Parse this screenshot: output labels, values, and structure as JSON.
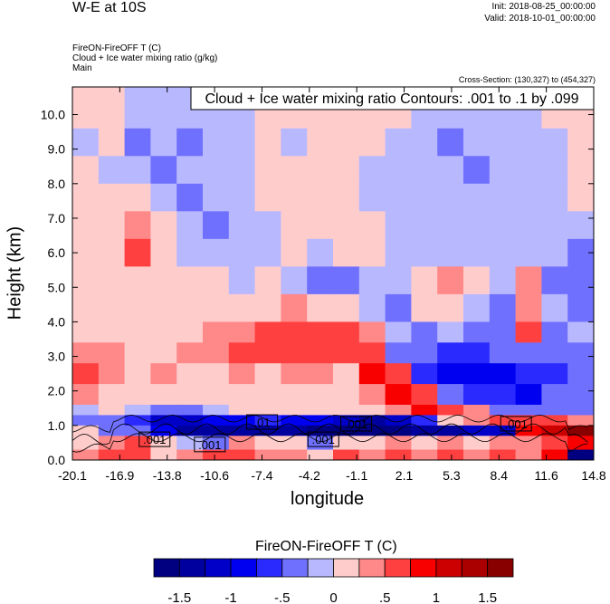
{
  "header": {
    "title": "W-E at 10S",
    "init": "Init: 2018-08-25_00:00:00",
    "valid": "Valid: 2018-10-01_00:00:00",
    "subtitles": [
      "FireON-FireOFF T   (C)",
      "Cloud + Ice water mixing ratio   (g/kg)",
      "Main"
    ],
    "cross_section": "Cross-Section: (130,327) to (454,327)"
  },
  "chart_data": {
    "type": "heatmap",
    "title": "W-E at 10S",
    "xlabel": "longitude",
    "ylabel": "Height (km)",
    "xlim": [
      -20.1,
      14.8
    ],
    "ylim": [
      0,
      10.8
    ],
    "x_ticks": [
      "-20.1",
      "-16.9",
      "-13.8",
      "-10.6",
      "-7.4",
      "-4.2",
      "-1.1",
      "2.1",
      "5.3",
      "8.4",
      "11.6",
      "14.8"
    ],
    "y_ticks": [
      "0.0",
      "1.0",
      "2.0",
      "3.0",
      "4.0",
      "5.0",
      "6.0",
      "7.0",
      "8.0",
      "9.0",
      "10.0"
    ],
    "contour_legend": "Cloud + Ice water mixing ratio Contours: .001 to .1 by .099",
    "contour_labels": [
      {
        "text": ".001",
        "lon": -14.6,
        "z": 0.6
      },
      {
        "text": ".001",
        "lon": -10.9,
        "z": 0.45
      },
      {
        "text": ".01",
        "lon": -7.4,
        "z": 1.1
      },
      {
        "text": ".001",
        "lon": -3.3,
        "z": 0.6
      },
      {
        "text": ".001",
        "lon": -1.1,
        "z": 1.05
      },
      {
        "text": ".001",
        "lon": 9.6,
        "z": 1.05
      }
    ],
    "z_edges": [
      10.8,
      10.4,
      9.6,
      8.8,
      8.0,
      7.2,
      6.4,
      5.6,
      4.8,
      4.0,
      3.4,
      2.8,
      2.2,
      1.6,
      1.3,
      1.0,
      0.7,
      0.3,
      0.0
    ],
    "values": [
      [
        0.1,
        0.2,
        -0.1,
        -0.2,
        -0.1,
        0.1,
        -0.2,
        -0.1,
        0.1,
        -0.1,
        0.2,
        0.2,
        0.1,
        -0.1,
        -0.2,
        0.1,
        -0.2,
        -0.1,
        0.1,
        0.2
      ],
      [
        0.2,
        0.1,
        -0.2,
        -0.1,
        -0.2,
        -0.2,
        -0.1,
        0.1,
        0.2,
        0.1,
        0.2,
        0.1,
        0.2,
        -0.1,
        -0.2,
        -0.1,
        -0.2,
        -0.1,
        0.1,
        0.2
      ],
      [
        -0.1,
        0.1,
        -0.3,
        -0.2,
        -0.3,
        -0.2,
        -0.1,
        0.1,
        -0.1,
        0.1,
        0.2,
        0.1,
        -0.1,
        -0.2,
        -0.3,
        -0.2,
        -0.1,
        -0.2,
        -0.1,
        0.2
      ],
      [
        0.1,
        -0.1,
        -0.2,
        -0.3,
        -0.2,
        -0.1,
        -0.2,
        0.1,
        0.1,
        0.2,
        0.1,
        -0.1,
        -0.2,
        -0.1,
        -0.2,
        -0.3,
        -0.2,
        -0.1,
        -0.2,
        0.1
      ],
      [
        0.2,
        0.1,
        0.2,
        -0.1,
        -0.3,
        -0.2,
        -0.1,
        0.1,
        0.2,
        0.1,
        0.1,
        -0.1,
        -0.1,
        -0.2,
        -0.2,
        -0.1,
        -0.2,
        -0.2,
        -0.1,
        0.1
      ],
      [
        0.1,
        0.2,
        0.4,
        0.1,
        -0.2,
        -0.3,
        -0.2,
        -0.1,
        0.1,
        0.2,
        0.2,
        0.1,
        -0.2,
        -0.2,
        -0.1,
        -0.2,
        -0.1,
        -0.2,
        -0.2,
        -0.1
      ],
      [
        0.1,
        0.2,
        0.5,
        0.2,
        -0.1,
        -0.1,
        -0.2,
        -0.1,
        0.1,
        -0.2,
        0.1,
        0.2,
        -0.1,
        -0.2,
        -0.2,
        -0.1,
        -0.2,
        -0.1,
        -0.2,
        -0.3
      ],
      [
        0.2,
        0.1,
        0.2,
        0.1,
        0.2,
        0.1,
        -0.1,
        0.1,
        -0.2,
        -0.4,
        -0.3,
        -0.2,
        -0.1,
        0.2,
        0.3,
        0.1,
        -0.1,
        0.3,
        -0.3,
        -0.4
      ],
      [
        0.1,
        0.2,
        0.2,
        0.2,
        0.1,
        0.1,
        0.2,
        0.2,
        0.3,
        0.2,
        0.1,
        -0.2,
        -0.3,
        0.1,
        0.2,
        -0.2,
        -0.3,
        0.4,
        -0.2,
        -0.3
      ],
      [
        0.2,
        0.2,
        0.1,
        0.1,
        0.2,
        0.3,
        0.4,
        0.5,
        0.6,
        0.6,
        0.5,
        0.3,
        -0.2,
        -0.3,
        -0.2,
        -0.4,
        -0.3,
        0.7,
        -0.3,
        -0.2
      ],
      [
        0.4,
        0.3,
        0.2,
        0.2,
        0.3,
        0.3,
        0.5,
        0.5,
        0.6,
        0.6,
        0.6,
        0.7,
        -0.3,
        -0.5,
        -0.6,
        -0.7,
        -0.5,
        -0.3,
        -0.5,
        -0.3
      ],
      [
        0.5,
        0.4,
        0.2,
        0.3,
        0.2,
        0.2,
        0.3,
        0.2,
        0.3,
        0.3,
        0.2,
        0.8,
        0.5,
        -0.6,
        -0.9,
        -1.0,
        -0.8,
        -0.6,
        -0.7,
        -0.4
      ],
      [
        0.3,
        0.2,
        0.1,
        0.2,
        0.2,
        0.2,
        0.1,
        0.2,
        0.2,
        0.2,
        0.1,
        0.3,
        0.9,
        0.6,
        -0.4,
        -0.6,
        -0.7,
        -0.8,
        -0.5,
        -0.3
      ],
      [
        -0.2,
        0.1,
        -0.1,
        -0.3,
        -0.4,
        -0.2,
        0.1,
        0.2,
        0.2,
        0.1,
        0.2,
        0.1,
        0.3,
        0.8,
        0.7,
        0.3,
        -0.3,
        -0.5,
        -0.4,
        -0.5
      ],
      [
        -0.3,
        -0.5,
        -0.6,
        -1.2,
        -1.2,
        -0.9,
        -0.8,
        -0.7,
        -0.9,
        -1.0,
        -1.2,
        -1.3,
        -1.1,
        -0.7,
        0.1,
        0.4,
        0.5,
        0.6,
        0.7,
        0.4
      ],
      [
        0.2,
        -0.3,
        -0.4,
        -0.9,
        -1.3,
        -1.5,
        -1.4,
        -1.3,
        -1.5,
        -1.6,
        -1.6,
        -1.7,
        -1.6,
        -1.5,
        -1.3,
        -1.2,
        -1.1,
        0.8,
        1.2,
        1.5
      ],
      [
        0.2,
        0.3,
        0.5,
        0.1,
        -0.2,
        -0.4,
        0.3,
        0.2,
        0.1,
        -0.3,
        0.2,
        0.1,
        0.3,
        0.2,
        0.3,
        0.1,
        0.4,
        0.3,
        0.5,
        0.9
      ],
      [
        0.4,
        0.5,
        0.6,
        0.2,
        0.3,
        0.5,
        0.6,
        0.3,
        0.4,
        0.2,
        0.5,
        0.3,
        0.6,
        0.4,
        0.6,
        0.3,
        0.7,
        0.4,
        0.8,
        -1.8
      ]
    ],
    "colorbar": {
      "title": "FireON-FireOFF T  (C)",
      "levels": [
        -1.75,
        -1.5,
        -1.25,
        -1,
        -0.75,
        -0.5,
        -0.25,
        0,
        0.25,
        0.5,
        0.75,
        1,
        1.25,
        1.5,
        1.75
      ],
      "colors": [
        "#000080",
        "#00009e",
        "#0000c8",
        "#0000f0",
        "#2a2aff",
        "#7070ff",
        "#b8b8ff",
        "#ffcccc",
        "#ff8888",
        "#ff4040",
        "#f80000",
        "#cc0000",
        "#aa0000",
        "#880000"
      ],
      "tick_labels": [
        {
          "v": -1.5,
          "t": "-1.5"
        },
        {
          "v": -1,
          "t": "-1"
        },
        {
          "v": -0.5,
          "t": "-.5"
        },
        {
          "v": 0,
          "t": "0"
        },
        {
          "v": 0.5,
          "t": ".5"
        },
        {
          "v": 1,
          "t": "1"
        },
        {
          "v": 1.5,
          "t": "1.5"
        }
      ]
    }
  }
}
